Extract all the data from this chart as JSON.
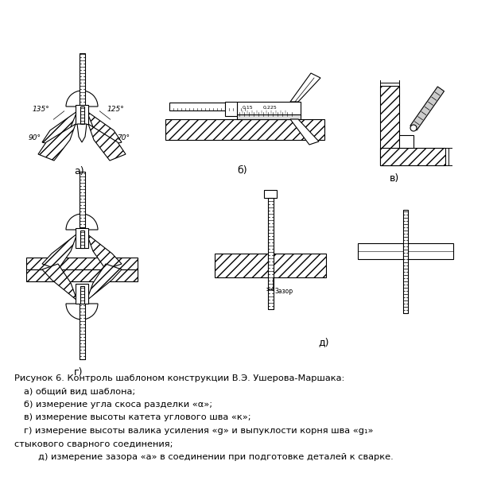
{
  "background_color": "#ffffff",
  "caption_line1": "Рисунок 6. Контроль шаблоном конструкции В.Э. Ушерова-Маршака:",
  "caption_line2": "а) общий вид шаблона;",
  "caption_line3": "б) измерение угла скоса разделки «α»;",
  "caption_line4": "в) измерение высоты катета углового шва «к»;",
  "caption_line5": "г) измерение высоты валика усиления «g» и выпуклости корня шва «g₁»",
  "caption_line6": "стыкового сварного соединения;",
  "caption_line7": "д) измерение зазора «а» в соединении при подготовке деталей к сварке.",
  "label_a": "а)",
  "label_b": "б)",
  "label_v": "в)",
  "label_g": "г)",
  "label_d": "д)",
  "text_color": "#000000",
  "draw_color": "#000000",
  "angle_135": "135°",
  "angle_125": "125°",
  "angle_90": "90°",
  "angle_70": "70°",
  "zazor_text": "Зазор"
}
